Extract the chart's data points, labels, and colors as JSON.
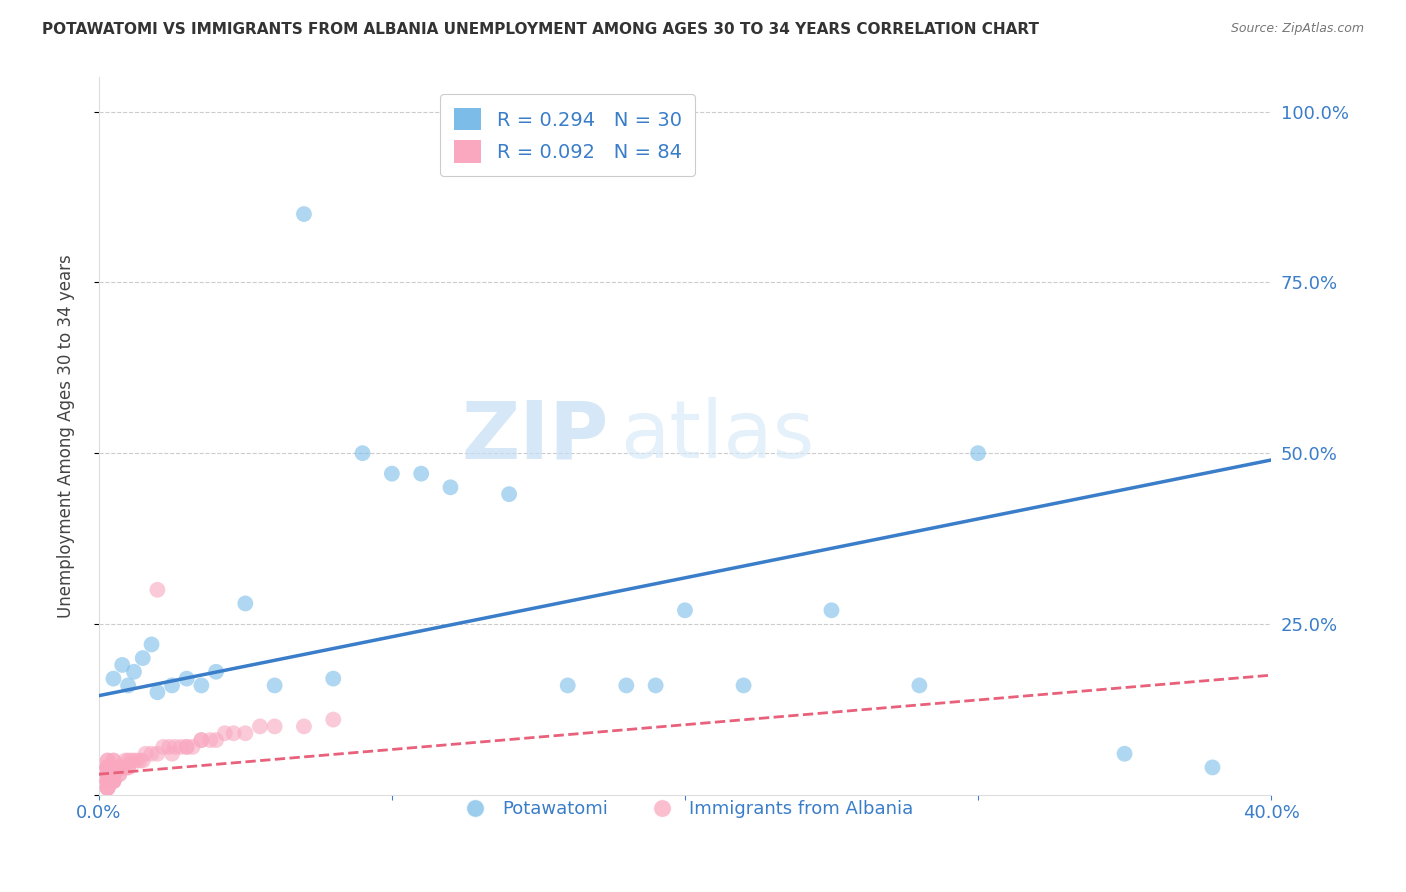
{
  "title": "POTAWATOMI VS IMMIGRANTS FROM ALBANIA UNEMPLOYMENT AMONG AGES 30 TO 34 YEARS CORRELATION CHART",
  "source": "Source: ZipAtlas.com",
  "ylabel": "Unemployment Among Ages 30 to 34 years",
  "xlim": [
    0.0,
    0.4
  ],
  "ylim": [
    0.0,
    1.05
  ],
  "xticks": [
    0.0,
    0.1,
    0.2,
    0.3,
    0.4
  ],
  "xtick_labels": [
    "0.0%",
    "",
    "",
    "",
    "40.0%"
  ],
  "yticks": [
    0.0,
    0.25,
    0.5,
    0.75,
    1.0
  ],
  "ytick_labels_right": [
    "",
    "25.0%",
    "50.0%",
    "75.0%",
    "100.0%"
  ],
  "background_color": "#ffffff",
  "grid_color": "#cccccc",
  "blue_color": "#7bbde8",
  "pink_color": "#f9a8c0",
  "blue_line_color": "#3a7dc9",
  "pink_line_color": "#e8607a",
  "legend_R_blue": "R = 0.294",
  "legend_N_blue": "N = 30",
  "legend_R_pink": "R = 0.092",
  "legend_N_pink": "N = 84",
  "label_blue": "Potawatomi",
  "label_pink": "Immigrants from Albania",
  "watermark_left": "ZIP",
  "watermark_right": "atlas",
  "blue_scatter_x": [
    0.005,
    0.008,
    0.01,
    0.012,
    0.015,
    0.018,
    0.02,
    0.025,
    0.03,
    0.035,
    0.04,
    0.05,
    0.06,
    0.07,
    0.08,
    0.09,
    0.1,
    0.11,
    0.12,
    0.14,
    0.16,
    0.18,
    0.19,
    0.2,
    0.22,
    0.25,
    0.28,
    0.3,
    0.35,
    0.38
  ],
  "blue_scatter_y": [
    0.17,
    0.19,
    0.16,
    0.18,
    0.2,
    0.22,
    0.15,
    0.16,
    0.17,
    0.16,
    0.18,
    0.28,
    0.16,
    0.85,
    0.17,
    0.5,
    0.47,
    0.47,
    0.45,
    0.44,
    0.16,
    0.16,
    0.16,
    0.27,
    0.16,
    0.27,
    0.16,
    0.5,
    0.06,
    0.04
  ],
  "pink_scatter_x": [
    0.003,
    0.003,
    0.003,
    0.003,
    0.003,
    0.003,
    0.003,
    0.003,
    0.003,
    0.003,
    0.003,
    0.003,
    0.003,
    0.003,
    0.003,
    0.003,
    0.003,
    0.003,
    0.003,
    0.003,
    0.003,
    0.003,
    0.003,
    0.003,
    0.003,
    0.003,
    0.003,
    0.003,
    0.003,
    0.003,
    0.005,
    0.005,
    0.005,
    0.005,
    0.005,
    0.005,
    0.005,
    0.005,
    0.005,
    0.005,
    0.005,
    0.005,
    0.005,
    0.005,
    0.005,
    0.007,
    0.007,
    0.007,
    0.007,
    0.008,
    0.008,
    0.009,
    0.009,
    0.01,
    0.01,
    0.01,
    0.011,
    0.012,
    0.013,
    0.014,
    0.015,
    0.016,
    0.018,
    0.02,
    0.022,
    0.024,
    0.026,
    0.028,
    0.03,
    0.032,
    0.035,
    0.038,
    0.04,
    0.043,
    0.046,
    0.05,
    0.055,
    0.06,
    0.07,
    0.08,
    0.02,
    0.025,
    0.03,
    0.035
  ],
  "pink_scatter_y": [
    0.01,
    0.01,
    0.01,
    0.01,
    0.02,
    0.02,
    0.02,
    0.02,
    0.02,
    0.02,
    0.02,
    0.02,
    0.03,
    0.03,
    0.03,
    0.03,
    0.03,
    0.03,
    0.03,
    0.04,
    0.04,
    0.04,
    0.04,
    0.04,
    0.04,
    0.04,
    0.04,
    0.04,
    0.05,
    0.05,
    0.02,
    0.02,
    0.02,
    0.02,
    0.03,
    0.03,
    0.03,
    0.03,
    0.03,
    0.04,
    0.04,
    0.04,
    0.04,
    0.05,
    0.05,
    0.03,
    0.03,
    0.04,
    0.04,
    0.04,
    0.04,
    0.04,
    0.05,
    0.04,
    0.04,
    0.05,
    0.05,
    0.05,
    0.05,
    0.05,
    0.05,
    0.06,
    0.06,
    0.06,
    0.07,
    0.07,
    0.07,
    0.07,
    0.07,
    0.07,
    0.08,
    0.08,
    0.08,
    0.09,
    0.09,
    0.09,
    0.1,
    0.1,
    0.1,
    0.11,
    0.3,
    0.06,
    0.07,
    0.08
  ],
  "blue_line_x": [
    0.0,
    0.4
  ],
  "blue_line_y": [
    0.145,
    0.49
  ],
  "pink_line_x": [
    0.0,
    0.4
  ],
  "pink_line_y": [
    0.03,
    0.175
  ]
}
